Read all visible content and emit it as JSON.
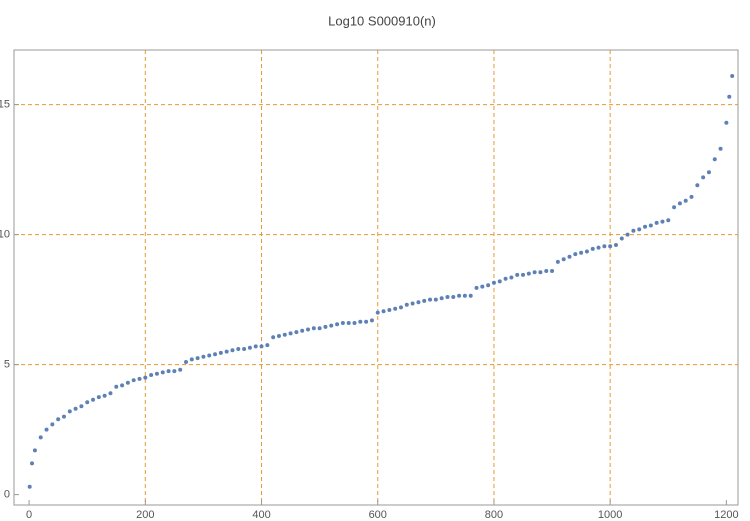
{
  "chart_data": {
    "type": "scatter",
    "title": "Log10 S000910(n)",
    "series": [
      {
        "color": "#5e81b5",
        "x": [
          1,
          5,
          10,
          20,
          30,
          40,
          50,
          60,
          70,
          80,
          90,
          100,
          110,
          120,
          130,
          140,
          150,
          160,
          170,
          180,
          190,
          200,
          210,
          220,
          230,
          240,
          250,
          260,
          270,
          280,
          290,
          300,
          310,
          320,
          330,
          340,
          350,
          360,
          370,
          380,
          390,
          400,
          410,
          420,
          430,
          440,
          450,
          460,
          470,
          480,
          490,
          500,
          510,
          520,
          530,
          540,
          550,
          560,
          570,
          580,
          590,
          600,
          610,
          620,
          630,
          640,
          650,
          660,
          670,
          680,
          690,
          700,
          710,
          720,
          730,
          740,
          750,
          760,
          770,
          780,
          790,
          800,
          810,
          820,
          830,
          840,
          850,
          860,
          870,
          880,
          890,
          900,
          910,
          920,
          930,
          940,
          950,
          960,
          970,
          980,
          990,
          1000,
          1010,
          1020,
          1030,
          1040,
          1050,
          1060,
          1070,
          1080,
          1090,
          1100,
          1110,
          1120,
          1130,
          1140,
          1150,
          1160,
          1170,
          1180,
          1190,
          1200,
          1205,
          1210
        ],
        "values": [
          0.3,
          1.2,
          1.7,
          2.2,
          2.5,
          2.7,
          2.9,
          3.0,
          3.2,
          3.3,
          3.4,
          3.55,
          3.65,
          3.75,
          3.8,
          3.9,
          4.15,
          4.2,
          4.3,
          4.4,
          4.45,
          4.5,
          4.6,
          4.65,
          4.7,
          4.75,
          4.75,
          4.8,
          5.1,
          5.2,
          5.25,
          5.3,
          5.35,
          5.4,
          5.45,
          5.5,
          5.55,
          5.6,
          5.6,
          5.65,
          5.7,
          5.7,
          5.75,
          6.05,
          6.1,
          6.15,
          6.2,
          6.25,
          6.3,
          6.35,
          6.4,
          6.4,
          6.45,
          6.5,
          6.55,
          6.6,
          6.6,
          6.6,
          6.65,
          6.65,
          6.7,
          7.0,
          7.05,
          7.1,
          7.15,
          7.2,
          7.3,
          7.35,
          7.4,
          7.45,
          7.5,
          7.5,
          7.55,
          7.6,
          7.6,
          7.65,
          7.65,
          7.65,
          7.95,
          8.0,
          8.05,
          8.15,
          8.2,
          8.3,
          8.35,
          8.45,
          8.45,
          8.5,
          8.55,
          8.55,
          8.6,
          8.6,
          8.95,
          9.05,
          9.15,
          9.25,
          9.3,
          9.35,
          9.45,
          9.5,
          9.55,
          9.55,
          9.6,
          9.85,
          10.0,
          10.15,
          10.2,
          10.3,
          10.35,
          10.45,
          10.5,
          10.55,
          11.05,
          11.2,
          11.3,
          11.45,
          11.9,
          12.2,
          12.4,
          12.9,
          13.3,
          14.3,
          15.3,
          16.1
        ]
      }
    ],
    "xlim": [
      -26,
      1220
    ],
    "ylim": [
      -0.4,
      17.1
    ],
    "xticks": [
      0,
      200,
      400,
      600,
      800,
      1000,
      1200
    ],
    "yticks": [
      0,
      5,
      10,
      15
    ],
    "xgrid": [
      200,
      400,
      600,
      800,
      1000
    ],
    "ygrid": [
      5,
      10,
      15
    ],
    "grid_color": "#e69a2e"
  }
}
